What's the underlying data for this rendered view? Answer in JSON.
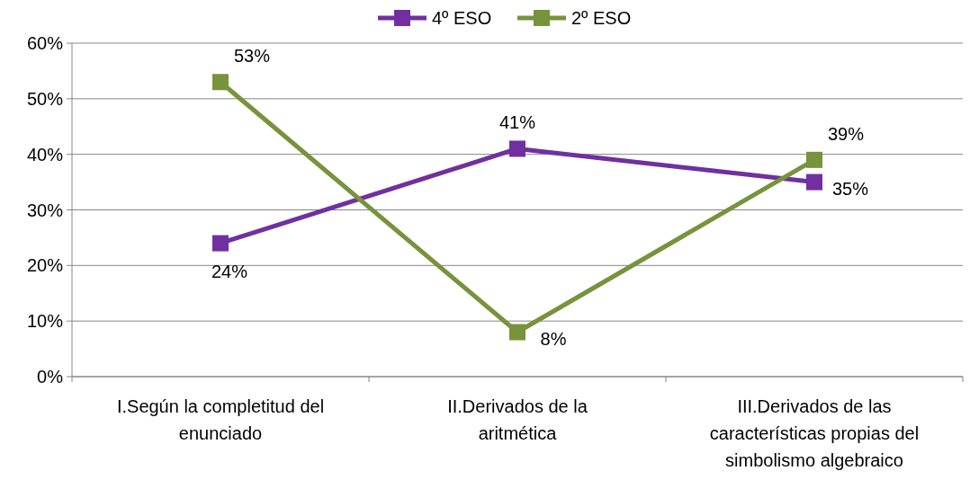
{
  "chart_data": {
    "type": "line",
    "categories": [
      "I.Según la completitud del enunciado",
      "II.Derivados de la aritmética",
      "III.Derivados de las características propias del simbolismo algebraico"
    ],
    "series": [
      {
        "name": "4º ESO",
        "color": "#7030a0",
        "values": [
          24,
          41,
          35
        ],
        "value_labels": [
          "24%",
          "41%",
          "35%"
        ]
      },
      {
        "name": "2º ESO",
        "color": "#77933c",
        "values": [
          53,
          8,
          39
        ],
        "value_labels": [
          "53%",
          "8%",
          "39%"
        ]
      }
    ],
    "ylim": [
      0,
      60
    ],
    "yticks": [
      {
        "value": 0,
        "label": "0%"
      },
      {
        "value": 10,
        "label": "10%"
      },
      {
        "value": 20,
        "label": "20%"
      },
      {
        "value": 30,
        "label": "30%"
      },
      {
        "value": 40,
        "label": "40%"
      },
      {
        "value": 50,
        "label": "50%"
      },
      {
        "value": 60,
        "label": "60%"
      }
    ],
    "grid": "y",
    "legend": "top",
    "marker": "square",
    "line_style": "solid"
  }
}
